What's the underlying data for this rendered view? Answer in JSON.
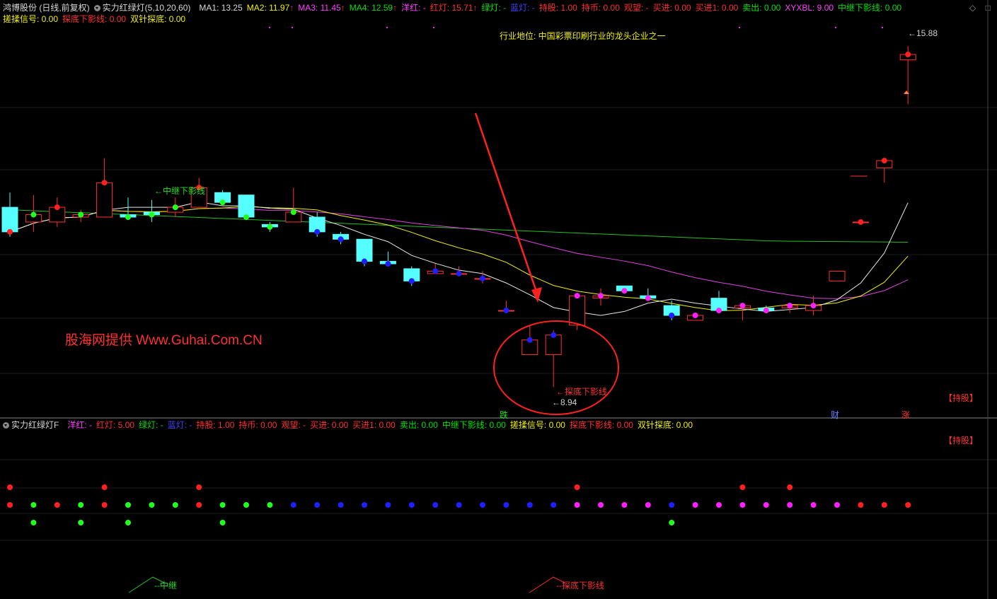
{
  "header": {
    "stock": "鸿博股份 (日线,前复权)",
    "indicator": "实力红绿灯(5,10,20,60)",
    "ma1": "MA1: 13.25",
    "ma2": "MA2: 11.97",
    "ma3": "MA3: 11.45",
    "ma4": "MA4: 12.59",
    "yanghong": "洋红: -",
    "hongdeng": "红灯: 15.71",
    "lvdeng": "绿灯: -",
    "landeng": "蓝灯: -",
    "chigu": "持股: 1.00",
    "chibi": "持币: 0.00",
    "guanwang": "观望: -",
    "maijin": "买进: 0.00",
    "maijin1": "买进1: 0.00",
    "maichu": "卖出: 0.00",
    "xyxbl": "XYXBL: 9.00",
    "zhongji": "中继下影线: 0.00",
    "arrow_up": "↑"
  },
  "header2": {
    "cuorou": "搓揉信号: 0.00",
    "tandi": "探底下影线: 0.00",
    "shuangzhen": "双针探底: 0.00"
  },
  "annotations": {
    "industry": "行业地位: 中国彩票印刷行业的龙头企业之一",
    "watermark": "股海网提供 Www.Guhai.Com.CN",
    "zhongji_label": "←中继下影线",
    "tandi_label": "←探底下影线",
    "low_price": "←8.94",
    "high_price": "←15.88",
    "die": "跌",
    "cai": "财",
    "zhang": "涨",
    "chigu_badge": "【持股】"
  },
  "sub_header": {
    "name": "实力红绿灯F",
    "yanghong": "洋红: -",
    "hongdeng": "红灯: 5.00",
    "lvdeng": "绿灯: -",
    "landeng": "蓝灯: -",
    "chigu": "持股: 1.00",
    "chibi": "持币: 0.00",
    "guanwang": "观望: -",
    "maijin": "买进: 0.00",
    "maijin1": "买进1: 0.00",
    "maichu": "卖出: 0.00",
    "zhongji": "中继下影线: 0.00",
    "cuorou": "搓揉信号: 0.00",
    "tandi": "探底下影线: 0.00",
    "shuangzhen": "双针探底: 0.00",
    "chigu_badge": "【持股】",
    "zhongji_label": "--中继",
    "tandi_label": "--探底下影线"
  },
  "colors": {
    "up": "#ff3030",
    "down": "#55ffff",
    "ma1": "#e8e8e8",
    "ma2": "#f0f000",
    "ma3": "#e040e0",
    "ma4": "#20c020",
    "dot_red": "#ff2020",
    "dot_green": "#20ff20",
    "dot_blue": "#2020ff",
    "dot_magenta": "#ff20ff"
  },
  "chart_data": {
    "type": "candlestick",
    "title": "鸿博股份 (日线,前复权)",
    "ylim": [
      8.5,
      16.3
    ],
    "series_ma": [
      "MA1",
      "MA2",
      "MA3",
      "MA4"
    ],
    "candles": [
      {
        "o": 12.6,
        "c": 12.1,
        "h": 12.9,
        "l": 12.0,
        "dot": "red"
      },
      {
        "o": 12.3,
        "c": 12.45,
        "h": 12.85,
        "l": 12.1,
        "dot": "green"
      },
      {
        "o": 12.3,
        "c": 12.6,
        "h": 12.8,
        "l": 12.2,
        "dot": "red"
      },
      {
        "o": 12.4,
        "c": 12.45,
        "h": 12.55,
        "l": 12.3,
        "dot": "green"
      },
      {
        "o": 12.4,
        "c": 13.1,
        "h": 13.6,
        "l": 12.4,
        "dot": "red"
      },
      {
        "o": 12.45,
        "c": 12.4,
        "h": 12.8,
        "l": 12.35,
        "dot": "green"
      },
      {
        "o": 12.5,
        "c": 12.45,
        "h": 12.75,
        "l": 12.3,
        "dot": "green"
      },
      {
        "o": 12.5,
        "c": 12.6,
        "h": 12.8,
        "l": 12.4,
        "dot": "green"
      },
      {
        "o": 12.6,
        "c": 13.0,
        "h": 13.2,
        "l": 12.6,
        "dot": "red"
      },
      {
        "o": 12.9,
        "c": 12.7,
        "h": 12.95,
        "l": 12.7,
        "dot": "green"
      },
      {
        "o": 12.85,
        "c": 12.4,
        "h": 12.85,
        "l": 12.4,
        "dot": "green"
      },
      {
        "o": 12.25,
        "c": 12.2,
        "h": 12.3,
        "l": 12.1,
        "dot": "green"
      },
      {
        "o": 12.3,
        "c": 12.5,
        "h": 13.0,
        "l": 12.3,
        "dot": "green"
      },
      {
        "o": 12.4,
        "c": 12.1,
        "h": 12.5,
        "l": 12.0,
        "dot": "blue"
      },
      {
        "o": 12.05,
        "c": 11.95,
        "h": 12.1,
        "l": 11.85,
        "dot": "blue"
      },
      {
        "o": 11.95,
        "c": 11.5,
        "h": 11.95,
        "l": 11.4,
        "dot": "blue"
      },
      {
        "o": 11.5,
        "c": 11.45,
        "h": 11.7,
        "l": 11.4,
        "dot": "blue"
      },
      {
        "o": 11.35,
        "c": 11.1,
        "h": 11.4,
        "l": 11.0,
        "dot": "blue"
      },
      {
        "o": 11.25,
        "c": 11.3,
        "h": 11.45,
        "l": 11.25,
        "dot": "blue"
      },
      {
        "o": 11.25,
        "c": 11.25,
        "h": 11.4,
        "l": 11.2,
        "dot": "blue"
      },
      {
        "o": 11.15,
        "c": 11.15,
        "h": 11.3,
        "l": 11.05,
        "dot": "blue"
      },
      {
        "o": 10.5,
        "c": 10.5,
        "h": 10.7,
        "l": 10.45,
        "dot": "blue"
      },
      {
        "o": 9.6,
        "c": 9.9,
        "h": 10.2,
        "l": 9.6,
        "dot": "blue"
      },
      {
        "o": 9.6,
        "c": 10.0,
        "h": 10.1,
        "l": 8.94,
        "dot": "blue"
      },
      {
        "o": 10.2,
        "c": 10.8,
        "h": 10.8,
        "l": 10.1,
        "dot": "magenta"
      },
      {
        "o": 10.75,
        "c": 10.8,
        "h": 10.95,
        "l": 10.6,
        "dot": "magenta"
      },
      {
        "o": 11.0,
        "c": 10.9,
        "h": 11.0,
        "l": 10.85,
        "dot": "magenta"
      },
      {
        "o": 10.8,
        "c": 10.75,
        "h": 10.95,
        "l": 10.7,
        "dot": "magenta"
      },
      {
        "o": 10.6,
        "c": 10.4,
        "h": 10.7,
        "l": 10.3,
        "dot": "blue"
      },
      {
        "o": 10.3,
        "c": 10.4,
        "h": 10.45,
        "l": 10.3,
        "dot": "magenta"
      },
      {
        "o": 10.75,
        "c": 10.5,
        "h": 10.9,
        "l": 10.5,
        "dot": "magenta"
      },
      {
        "o": 10.55,
        "c": 10.6,
        "h": 10.6,
        "l": 10.3,
        "dot": "magenta"
      },
      {
        "o": 10.55,
        "c": 10.5,
        "h": 10.6,
        "l": 10.45,
        "dot": "magenta"
      },
      {
        "o": 10.55,
        "c": 10.6,
        "h": 10.65,
        "l": 10.45,
        "dot": "magenta"
      },
      {
        "o": 10.5,
        "c": 10.6,
        "h": 10.8,
        "l": 10.4,
        "dot": "magenta"
      },
      {
        "o": 11.1,
        "c": 11.3,
        "h": 11.3,
        "l": 11.1,
        "dot": "none"
      },
      {
        "o": 12.3,
        "c": 12.3,
        "h": 12.3,
        "l": 12.3,
        "dot": "red"
      },
      {
        "o": 13.4,
        "c": 13.55,
        "h": 13.55,
        "l": 13.1,
        "dot": "red"
      },
      {
        "o": 15.6,
        "c": 15.71,
        "h": 15.88,
        "l": 14.7,
        "dot": "red"
      }
    ]
  },
  "sub_chart_data": {
    "type": "dots",
    "row1": [
      1,
      0,
      0,
      0,
      1,
      0,
      0,
      0,
      1,
      0,
      0,
      0,
      0,
      0,
      0,
      0,
      0,
      0,
      0,
      0,
      0,
      0,
      0,
      0,
      1,
      0,
      0,
      0,
      0,
      0,
      0,
      1,
      0,
      1,
      0,
      0,
      0,
      0,
      0
    ],
    "row2": [
      "red",
      "green",
      "red",
      "green",
      "red",
      "green",
      "green",
      "green",
      "red",
      "green",
      "green",
      "green",
      "blue",
      "blue",
      "blue",
      "blue",
      "blue",
      "blue",
      "blue",
      "blue",
      "blue",
      "blue",
      "blue",
      "blue",
      "magenta",
      "magenta",
      "magenta",
      "magenta",
      "blue",
      "magenta",
      "magenta",
      "magenta",
      "magenta",
      "magenta",
      "magenta",
      "magenta",
      "red",
      "red",
      "red"
    ],
    "row3": [
      0,
      1,
      0,
      1,
      0,
      1,
      0,
      0,
      0,
      1,
      0,
      0,
      0,
      0,
      0,
      0,
      0,
      0,
      0,
      0,
      0,
      0,
      0,
      0,
      0,
      0,
      0,
      0,
      1,
      0,
      0,
      0,
      0,
      0,
      0,
      0,
      0,
      0,
      0
    ]
  }
}
